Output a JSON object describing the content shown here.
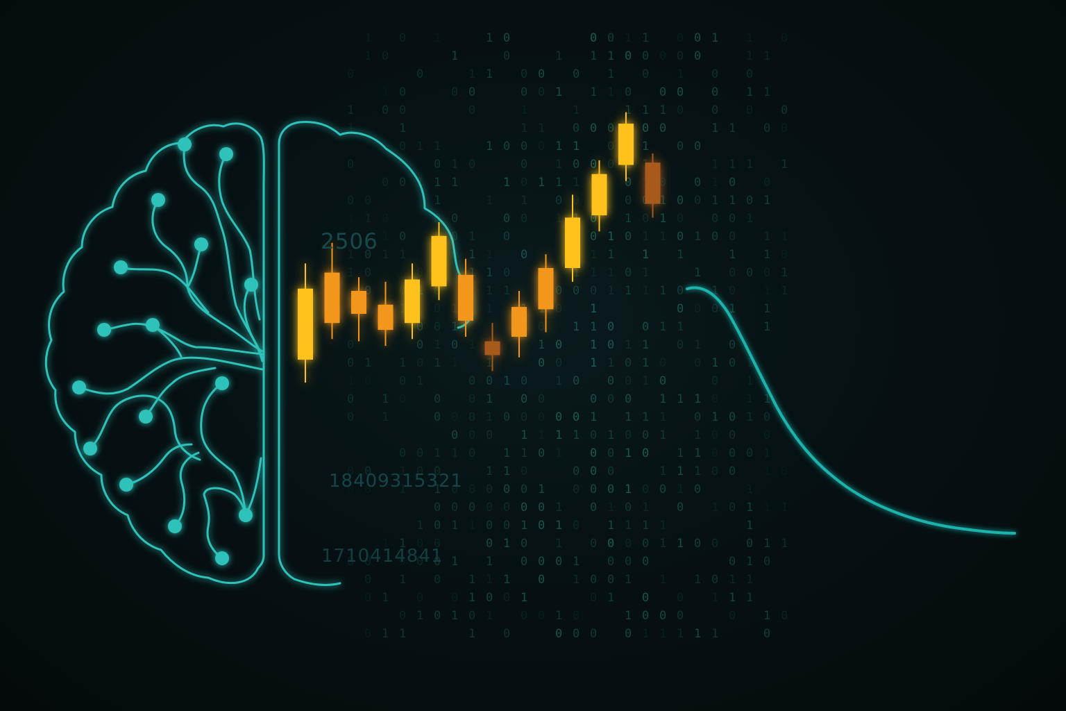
{
  "colors": {
    "background": "#050c0e",
    "brain_line": "#2fc2bb",
    "candle_bright": "#ffc21a",
    "candle_mid": "#f2961a",
    "candle_dark": "#a85a1e",
    "curve": "#1fb3ad",
    "digits": "#15484a"
  },
  "numbers": {
    "top": "2506",
    "middle": "18409315321",
    "bottom": "1710414841"
  },
  "digit_rain": {
    "chars": [
      "0",
      "1"
    ]
  },
  "icons": {
    "brain": "brain-circuit-icon",
    "candles": "candlestick-chart-icon",
    "curve": "decay-curve-icon"
  },
  "candles": [
    {
      "open": 0.4,
      "close": 0.71,
      "high": 0.82,
      "low": 0.3,
      "tone": "bright"
    },
    {
      "open": 0.56,
      "close": 0.78,
      "high": 0.91,
      "low": 0.49,
      "tone": "mid"
    },
    {
      "open": 0.6,
      "close": 0.7,
      "high": 0.76,
      "low": 0.48,
      "tone": "mid"
    },
    {
      "open": 0.53,
      "close": 0.64,
      "high": 0.74,
      "low": 0.46,
      "tone": "mid"
    },
    {
      "open": 0.56,
      "close": 0.75,
      "high": 0.82,
      "low": 0.49,
      "tone": "bright"
    },
    {
      "open": 0.72,
      "close": 0.94,
      "high": 1.0,
      "low": 0.66,
      "tone": "bright"
    },
    {
      "open": 0.57,
      "close": 0.77,
      "high": 0.84,
      "low": 0.5,
      "tone": "mid"
    },
    {
      "open": 0.42,
      "close": 0.48,
      "high": 0.56,
      "low": 0.35,
      "tone": "dark"
    },
    {
      "open": 0.5,
      "close": 0.63,
      "high": 0.7,
      "low": 0.41,
      "tone": "mid"
    },
    {
      "open": 0.62,
      "close": 0.8,
      "high": 0.86,
      "low": 0.52,
      "tone": "mid"
    },
    {
      "open": 0.8,
      "close": 1.02,
      "high": 1.12,
      "low": 0.74,
      "tone": "bright"
    },
    {
      "open": 1.03,
      "close": 1.21,
      "high": 1.27,
      "low": 0.96,
      "tone": "bright"
    },
    {
      "open": 1.25,
      "close": 1.43,
      "high": 1.48,
      "low": 1.18,
      "tone": "bright"
    },
    {
      "open": 1.08,
      "close": 1.26,
      "high": 1.3,
      "low": 1.02,
      "tone": "dark"
    }
  ]
}
